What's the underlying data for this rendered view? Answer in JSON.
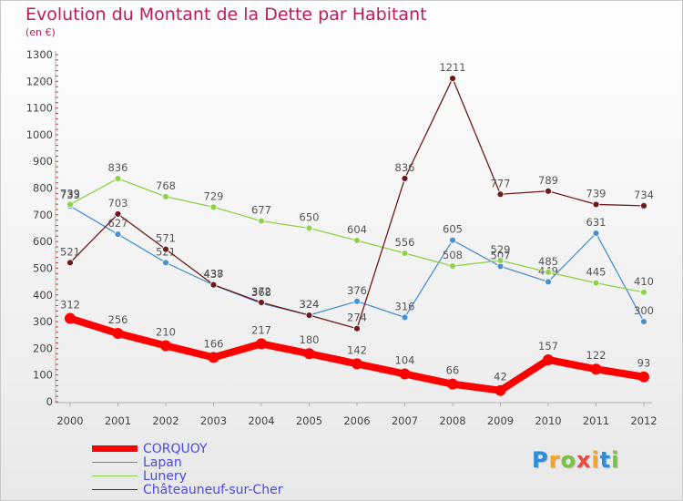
{
  "header": {
    "title": "Evolution du Montant de la Dette par Habitant",
    "subtitle": "(en €)"
  },
  "chart_data": {
    "type": "line",
    "x": [
      "2000",
      "2001",
      "2002",
      "2003",
      "2004",
      "2005",
      "2006",
      "2007",
      "2008",
      "2009",
      "2010",
      "2011",
      "2012"
    ],
    "ylim": [
      0,
      1300
    ],
    "yticks": [
      0,
      100,
      200,
      300,
      400,
      500,
      600,
      700,
      800,
      900,
      1000,
      1100,
      1200,
      1300
    ],
    "grid": false,
    "legend_position": "bottom-left",
    "series": [
      {
        "name": "CORQUOY",
        "color": "#ff0000",
        "values": [
          312,
          256,
          210,
          166,
          217,
          180,
          142,
          104,
          66,
          42,
          157,
          122,
          93
        ]
      },
      {
        "name": "Lapan",
        "color": "#4a8fce",
        "values": [
          733,
          627,
          521,
          437,
          368,
          324,
          376,
          316,
          605,
          507,
          449,
          631,
          300
        ]
      },
      {
        "name": "Lunery",
        "color": "#8ed14a",
        "values": [
          739,
          836,
          768,
          729,
          677,
          650,
          604,
          556,
          508,
          529,
          485,
          445,
          410
        ]
      },
      {
        "name": "Châteauneuf-sur-Cher",
        "color": "#6b1a1a",
        "values": [
          521,
          703,
          571,
          438,
          372,
          324,
          274,
          836,
          1211,
          777,
          789,
          739,
          734
        ]
      }
    ]
  },
  "brand": {
    "letters": [
      {
        "ch": "P",
        "color": "#2e8bd8"
      },
      {
        "ch": "r",
        "color": "#f5a623"
      },
      {
        "ch": "o",
        "color": "#7cc242"
      },
      {
        "ch": "x",
        "color": "#e94a3f"
      },
      {
        "ch": "i",
        "color": "#f5a623"
      },
      {
        "ch": "t",
        "color": "#2e8bd8"
      },
      {
        "ch": "i",
        "color": "#7cc242"
      }
    ]
  }
}
